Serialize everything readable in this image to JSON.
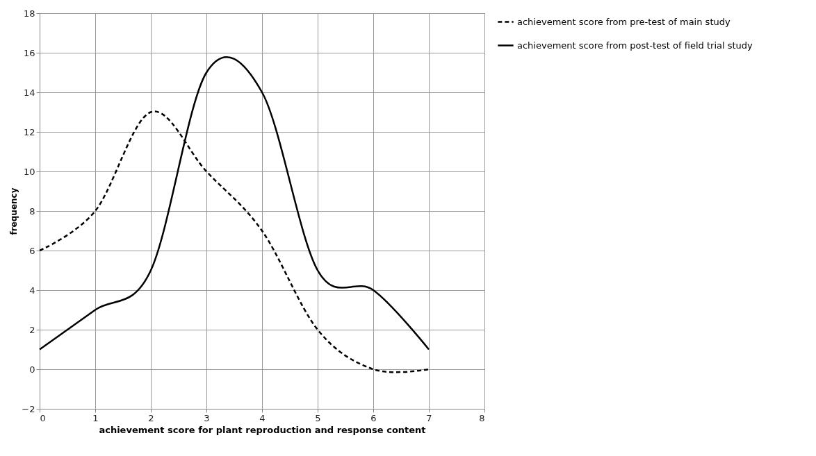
{
  "chart_data": {
    "type": "line",
    "xlabel": "achievement score for plant reproduction and response content",
    "ylabel": "frequency",
    "x": [
      0,
      1,
      2,
      3,
      4,
      5,
      6,
      7
    ],
    "series": [
      {
        "name": "achievement score from pre-test of main study",
        "color": "#000000",
        "line_style": "dashed",
        "values": [
          6,
          8,
          13,
          10,
          7,
          2,
          0,
          0
        ]
      },
      {
        "name": "achievement score from post-test of field trial study",
        "color": "#000000",
        "line_style": "solid",
        "values": [
          1,
          3,
          5,
          15,
          14,
          5,
          4,
          1
        ]
      }
    ],
    "xlim": [
      0,
      8
    ],
    "xticks": [
      0,
      1,
      2,
      3,
      4,
      5,
      6,
      7,
      8
    ],
    "ylim": [
      -2,
      18
    ],
    "yticks": [
      -2,
      0,
      2,
      4,
      6,
      8,
      10,
      12,
      14,
      16,
      18
    ],
    "grid": true,
    "legend": "right",
    "marker": "none"
  }
}
